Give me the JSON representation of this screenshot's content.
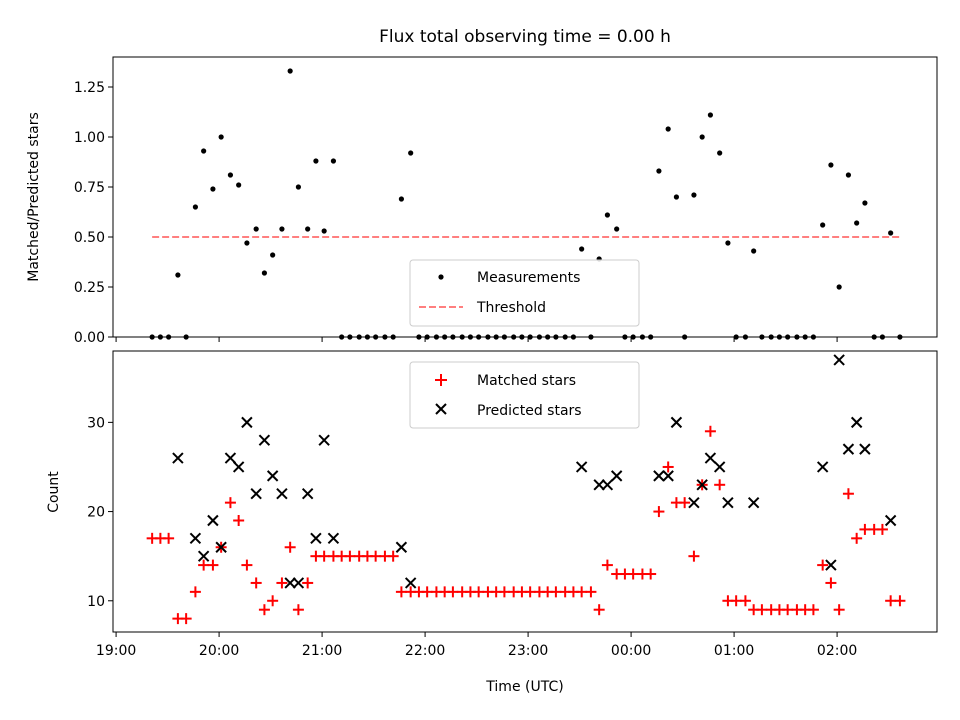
{
  "chart_data": [
    {
      "type": "scatter",
      "title": "Flux total observing time = 0.00 h",
      "xlabel": "",
      "ylabel": "Matched/Predicted stars",
      "ylim": [
        0,
        1.4
      ],
      "yticks": [
        "0.00",
        "0.25",
        "0.50",
        "0.75",
        "1.00",
        "1.25"
      ],
      "xlim_hours": [
        18.97,
        26.97
      ],
      "legend_position": "bottom-center",
      "legend": [
        "Measurements",
        "Threshold"
      ],
      "threshold": 0.5,
      "threshold_x_hours": [
        19.35,
        26.62
      ],
      "series": [
        {
          "name": "Measurements",
          "x_hours": [
            19.35,
            19.43,
            19.51,
            19.6,
            19.68,
            19.77,
            19.85,
            19.94,
            20.02,
            20.11,
            20.19,
            20.27,
            20.36,
            20.44,
            20.52,
            20.61,
            20.69,
            20.77,
            20.86,
            20.94,
            21.02,
            21.11,
            21.19,
            21.27,
            21.36,
            21.44,
            21.52,
            21.61,
            21.69,
            21.77,
            21.86,
            21.94,
            22.02,
            22.11,
            22.19,
            22.27,
            22.36,
            22.44,
            22.52,
            22.61,
            22.69,
            22.77,
            22.86,
            22.94,
            23.02,
            23.11,
            23.19,
            23.27,
            23.36,
            23.44,
            23.52,
            23.61,
            23.69,
            23.77,
            23.86,
            23.94,
            24.02,
            24.11,
            24.19,
            24.27,
            24.36,
            24.44,
            24.52,
            24.61,
            24.69,
            24.77,
            24.86,
            24.94,
            25.02,
            25.11,
            25.19,
            25.27,
            25.36,
            25.44,
            25.52,
            25.61,
            25.69,
            25.77,
            25.86,
            25.94,
            26.02,
            26.11,
            26.19,
            26.27,
            26.36,
            26.44,
            26.52,
            26.61
          ],
          "y": [
            0,
            0,
            0,
            0.31,
            0,
            0.65,
            0.93,
            0.74,
            1.0,
            0.81,
            0.76,
            0.47,
            0.54,
            0.32,
            0.41,
            0.54,
            1.33,
            0.75,
            0.54,
            0.88,
            0.53,
            0.88,
            0,
            0,
            0,
            0,
            0,
            0,
            0,
            0.69,
            0.92,
            0,
            0,
            0,
            0,
            0,
            0,
            0,
            0,
            0,
            0,
            0,
            0,
            0,
            0,
            0,
            0,
            0,
            0,
            0,
            0.44,
            0,
            0.39,
            0.61,
            0.54,
            0,
            0,
            0,
            0,
            0.83,
            1.04,
            0.7,
            0,
            0.71,
            1.0,
            1.11,
            0.92,
            0.47,
            0,
            0,
            0.43,
            0,
            0,
            0,
            0,
            0,
            0,
            0,
            0.56,
            0.86,
            0.25,
            0.81,
            0.57,
            0.67,
            0,
            0,
            0.52,
            0
          ]
        }
      ]
    },
    {
      "type": "scatter",
      "title": "",
      "xlabel": "Time (UTC)",
      "ylabel": "Count",
      "ylim": [
        6.5,
        38
      ],
      "yticks": [
        "10",
        "20",
        "30"
      ],
      "xlim_hours": [
        18.97,
        26.97
      ],
      "xticks": [
        "19:00",
        "20:00",
        "21:00",
        "22:00",
        "23:00",
        "00:00",
        "01:00",
        "02:00"
      ],
      "legend_position": "top-center",
      "legend": [
        "Matched stars",
        "Predicted stars"
      ],
      "series": [
        {
          "name": "Matched stars",
          "x_hours": [
            19.35,
            19.43,
            19.51,
            19.6,
            19.68,
            19.77,
            19.85,
            19.94,
            20.02,
            20.11,
            20.19,
            20.27,
            20.36,
            20.44,
            20.52,
            20.61,
            20.69,
            20.77,
            20.86,
            20.94,
            21.02,
            21.11,
            21.19,
            21.27,
            21.36,
            21.44,
            21.52,
            21.61,
            21.69,
            21.77,
            21.86,
            21.94,
            22.02,
            22.11,
            22.19,
            22.27,
            22.36,
            22.44,
            22.52,
            22.61,
            22.69,
            22.77,
            22.86,
            22.94,
            23.02,
            23.11,
            23.19,
            23.27,
            23.36,
            23.44,
            23.52,
            23.61,
            23.69,
            23.77,
            23.86,
            23.94,
            24.02,
            24.11,
            24.19,
            24.27,
            24.36,
            24.44,
            24.52,
            24.61,
            24.69,
            24.77,
            24.86,
            24.94,
            25.02,
            25.11,
            25.19,
            25.27,
            25.36,
            25.44,
            25.52,
            25.61,
            25.69,
            25.77,
            25.86,
            25.94,
            26.02,
            26.11,
            26.19,
            26.27,
            26.36,
            26.44,
            26.52,
            26.61
          ],
          "y": [
            17,
            17,
            17,
            8,
            8,
            11,
            14,
            14,
            16,
            21,
            19,
            14,
            12,
            9,
            10,
            12,
            16,
            9,
            12,
            15,
            15,
            15,
            15,
            15,
            15,
            15,
            15,
            15,
            15,
            11,
            11,
            11,
            11,
            11,
            11,
            11,
            11,
            11,
            11,
            11,
            11,
            11,
            11,
            11,
            11,
            11,
            11,
            11,
            11,
            11,
            11,
            11,
            9,
            14,
            13,
            13,
            13,
            13,
            13,
            20,
            25,
            21,
            21,
            15,
            23,
            29,
            23,
            10,
            10,
            10,
            9,
            9,
            9,
            9,
            9,
            9,
            9,
            9,
            14,
            12,
            9,
            22,
            17,
            18,
            18,
            18,
            10,
            10
          ]
        },
        {
          "name": "Predicted stars",
          "x_hours": [
            19.6,
            19.77,
            19.85,
            19.94,
            20.02,
            20.11,
            20.19,
            20.27,
            20.36,
            20.44,
            20.52,
            20.61,
            20.69,
            20.77,
            20.86,
            20.94,
            21.02,
            21.11,
            21.77,
            21.86,
            23.52,
            23.69,
            23.77,
            23.86,
            24.27,
            24.36,
            24.44,
            24.61,
            24.69,
            24.77,
            24.86,
            24.94,
            25.19,
            25.86,
            25.94,
            26.02,
            26.11,
            26.19,
            26.27,
            26.52
          ],
          "y": [
            26,
            17,
            15,
            19,
            16,
            26,
            25,
            30,
            22,
            28,
            24,
            22,
            12,
            12,
            22,
            17,
            28,
            17,
            16,
            12,
            25,
            23,
            23,
            24,
            24,
            24,
            30,
            21,
            23,
            26,
            25,
            21,
            21,
            25,
            14,
            37,
            27,
            30,
            27,
            19
          ]
        }
      ]
    }
  ]
}
